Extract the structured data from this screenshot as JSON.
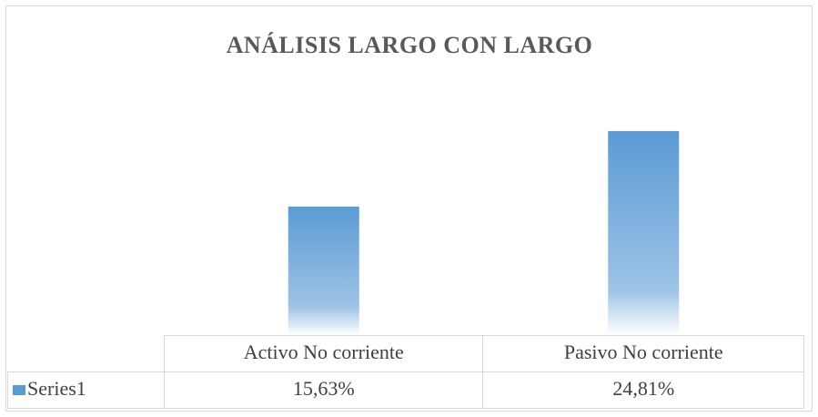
{
  "chart_data": {
    "type": "bar",
    "title": "ANÁLISIS LARGO CON LARGO",
    "categories": [
      "Activo No corriente",
      "Pasivo No corriente"
    ],
    "series": [
      {
        "name": "Series1",
        "color": "#5b9bd5",
        "values": [
          15.63,
          24.81
        ],
        "value_labels": [
          "15,63%",
          "24,81%"
        ]
      }
    ]
  }
}
